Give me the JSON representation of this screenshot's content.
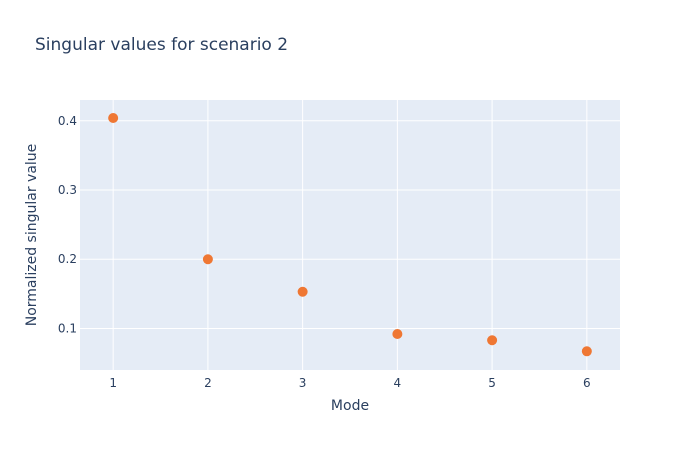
{
  "chart_data": {
    "type": "scatter",
    "title": "Singular values for scenario 2",
    "xlabel": "Mode",
    "ylabel": "Normalized singular value",
    "x": [
      1,
      2,
      3,
      4,
      5,
      6
    ],
    "series": [
      {
        "values": [
          0.404,
          0.2,
          0.153,
          0.092,
          0.083,
          0.067
        ]
      }
    ],
    "xlim": [
      0.65,
      6.35
    ],
    "ylim": [
      0.04,
      0.43
    ],
    "xticks": [
      1,
      2,
      3,
      4,
      5,
      6
    ],
    "xtick_labels": [
      "1",
      "2",
      "3",
      "4",
      "5",
      "6"
    ],
    "yticks": [
      0.1,
      0.2,
      0.3,
      0.4
    ],
    "ytick_labels": [
      "0.1",
      "0.2",
      "0.3",
      "0.4"
    ],
    "grid": true,
    "legend": "none",
    "colors": {
      "marker": "#ef7733",
      "plot_background": "#e5ecf6",
      "grid": "#ffffff",
      "text": "#2a3f5f"
    }
  }
}
